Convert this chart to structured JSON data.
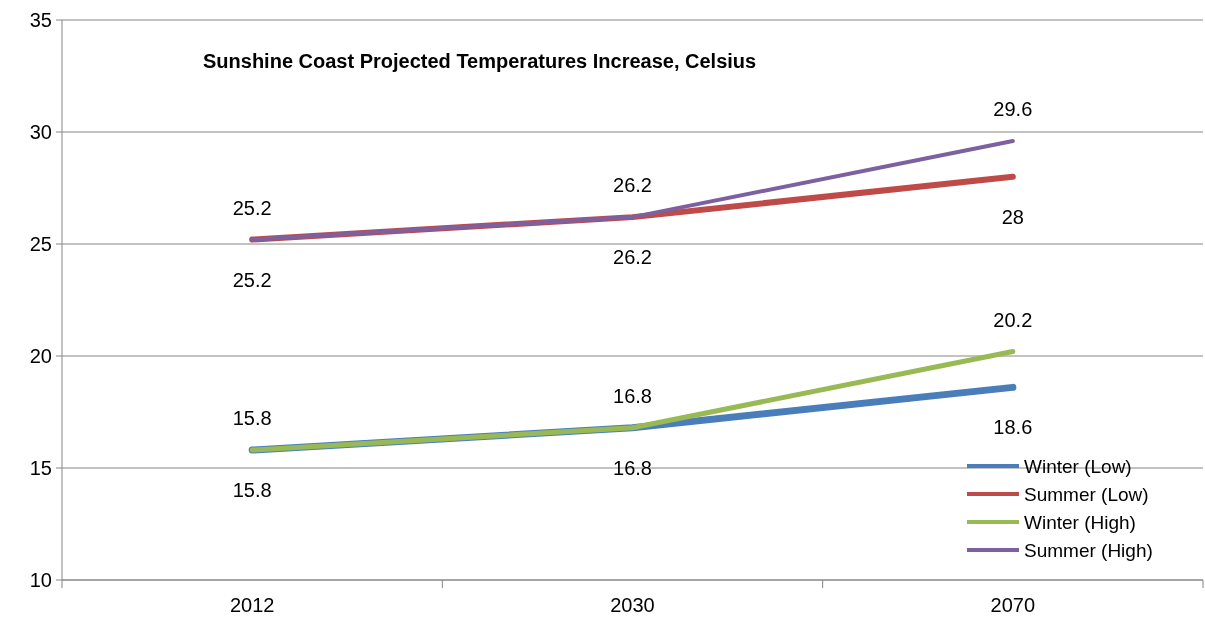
{
  "chart_data": {
    "type": "line",
    "title": "Sunshine Coast Projected Temperatures Increase, Celsius",
    "categories": [
      "2012",
      "2030",
      "2070"
    ],
    "series": [
      {
        "name": "Winter (Low)",
        "color": "#4a7ebb",
        "values": [
          15.8,
          16.8,
          18.6
        ]
      },
      {
        "name": "Summer (Low)",
        "color": "#be4b48",
        "values": [
          25.2,
          26.2,
          28
        ]
      },
      {
        "name": "Winter (High)",
        "color": "#98b954",
        "values": [
          15.8,
          16.8,
          20.2
        ]
      },
      {
        "name": "Summer (High)",
        "color": "#7d60a0",
        "values": [
          25.2,
          26.2,
          29.6
        ]
      }
    ],
    "ylim": [
      10,
      35
    ],
    "yticks": [
      10,
      15,
      20,
      25,
      30,
      35
    ],
    "grid": "y",
    "legend": "bottom right",
    "data_labels": true,
    "marker": "none",
    "line_style": "solid"
  }
}
